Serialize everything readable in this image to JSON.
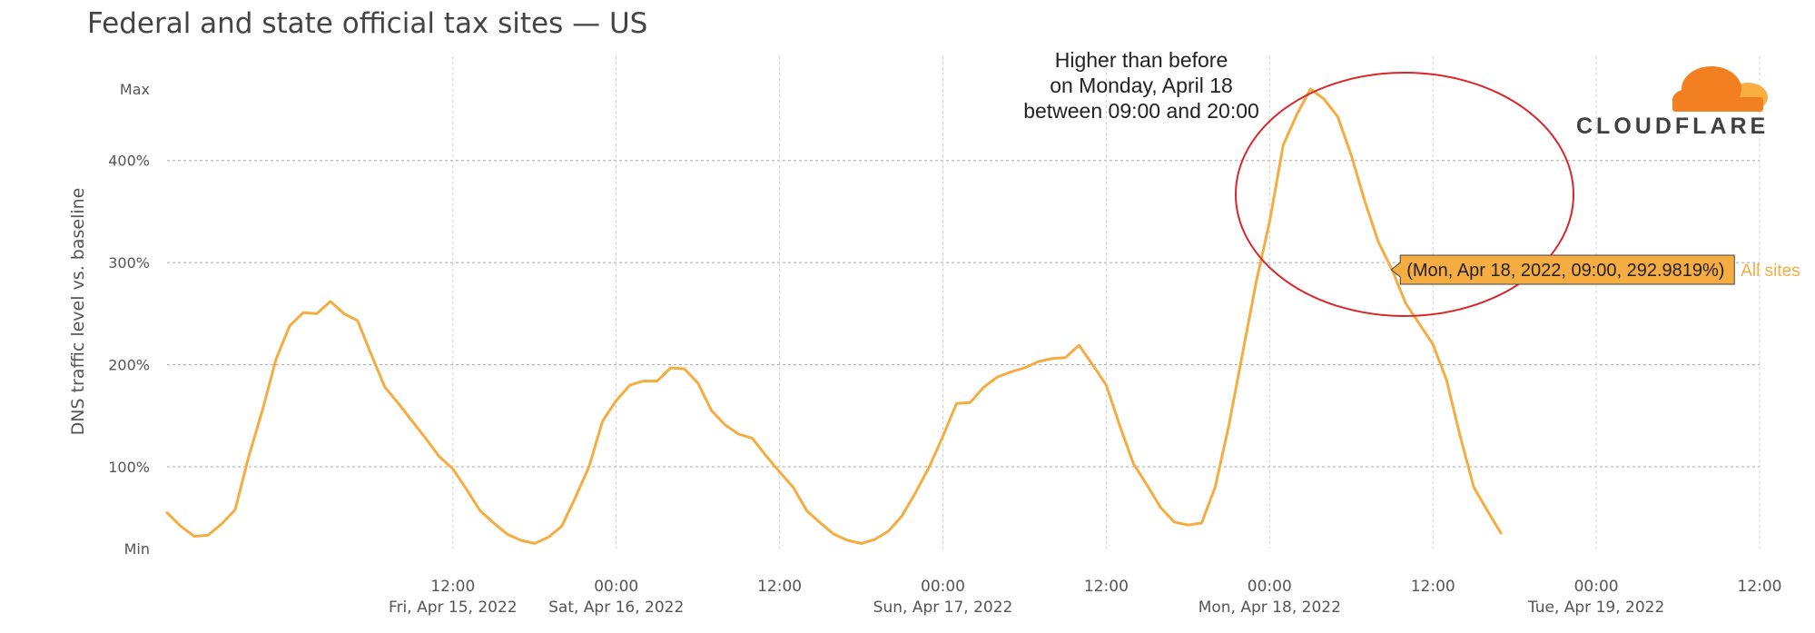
{
  "chart_data": {
    "type": "line",
    "title": "Federal and state official tax sites — US",
    "ylabel": "DNS traffic level vs. baseline",
    "xlabel": "",
    "y_ticks": [
      {
        "label": "Max",
        "value": 470
      },
      {
        "label": "400%",
        "value": 400
      },
      {
        "label": "300%",
        "value": 300
      },
      {
        "label": "200%",
        "value": 200
      },
      {
        "label": "100%",
        "value": 100
      },
      {
        "label": "Min",
        "value": 20
      }
    ],
    "ylim": [
      20,
      470
    ],
    "xlim": [
      "2022-04-14 15:00",
      "2022-04-19 12:00"
    ],
    "x_ticks": [
      {
        "time": "2022-04-15 12:00",
        "label": "12:00",
        "sublabel": "Fri, Apr 15, 2022"
      },
      {
        "time": "2022-04-16 00:00",
        "label": "00:00",
        "sublabel": "Sat, Apr 16, 2022"
      },
      {
        "time": "2022-04-16 12:00",
        "label": "12:00",
        "sublabel": ""
      },
      {
        "time": "2022-04-17 00:00",
        "label": "00:00",
        "sublabel": "Sun, Apr 17, 2022"
      },
      {
        "time": "2022-04-17 12:00",
        "label": "12:00",
        "sublabel": ""
      },
      {
        "time": "2022-04-18 00:00",
        "label": "00:00",
        "sublabel": "Mon, Apr 18, 2022"
      },
      {
        "time": "2022-04-18 12:00",
        "label": "12:00",
        "sublabel": ""
      },
      {
        "time": "2022-04-19 00:00",
        "label": "00:00",
        "sublabel": "Tue, Apr 19, 2022"
      },
      {
        "time": "2022-04-19 12:00",
        "label": "12:00",
        "sublabel": ""
      }
    ],
    "grid": true,
    "series": [
      {
        "name": "All sites",
        "color": "#f5ac41",
        "points": [
          [
            "2022-04-14 15:00",
            55
          ],
          [
            "2022-04-14 16:00",
            42
          ],
          [
            "2022-04-14 17:00",
            32
          ],
          [
            "2022-04-14 18:00",
            33
          ],
          [
            "2022-04-14 19:00",
            44
          ],
          [
            "2022-04-14 20:00",
            58
          ],
          [
            "2022-04-14 21:00",
            110
          ],
          [
            "2022-04-14 22:00",
            155
          ],
          [
            "2022-04-14 23:00",
            205
          ],
          [
            "2022-04-15 00:00",
            238
          ],
          [
            "2022-04-15 01:00",
            251
          ],
          [
            "2022-04-15 02:00",
            250
          ],
          [
            "2022-04-15 03:00",
            262
          ],
          [
            "2022-04-15 04:00",
            250
          ],
          [
            "2022-04-15 05:00",
            243
          ],
          [
            "2022-04-15 06:00",
            210
          ],
          [
            "2022-04-15 07:00",
            178
          ],
          [
            "2022-04-15 08:00",
            162
          ],
          [
            "2022-04-15 09:00",
            145
          ],
          [
            "2022-04-15 10:00",
            128
          ],
          [
            "2022-04-15 11:00",
            110
          ],
          [
            "2022-04-15 12:00",
            98
          ],
          [
            "2022-04-15 13:00",
            78
          ],
          [
            "2022-04-15 14:00",
            57
          ],
          [
            "2022-04-15 15:00",
            45
          ],
          [
            "2022-04-15 16:00",
            34
          ],
          [
            "2022-04-15 17:00",
            28
          ],
          [
            "2022-04-15 18:00",
            25
          ],
          [
            "2022-04-15 19:00",
            31
          ],
          [
            "2022-04-15 20:00",
            42
          ],
          [
            "2022-04-15 21:00",
            70
          ],
          [
            "2022-04-15 22:00",
            100
          ],
          [
            "2022-04-15 23:00",
            145
          ],
          [
            "2022-04-16 00:00",
            165
          ],
          [
            "2022-04-16 01:00",
            180
          ],
          [
            "2022-04-16 02:00",
            184
          ],
          [
            "2022-04-16 03:00",
            184
          ],
          [
            "2022-04-16 04:00",
            197
          ],
          [
            "2022-04-16 05:00",
            196
          ],
          [
            "2022-04-16 06:00",
            182
          ],
          [
            "2022-04-16 07:00",
            155
          ],
          [
            "2022-04-16 08:00",
            141
          ],
          [
            "2022-04-16 09:00",
            132
          ],
          [
            "2022-04-16 10:00",
            128
          ],
          [
            "2022-04-16 11:00",
            111
          ],
          [
            "2022-04-16 12:00",
            95
          ],
          [
            "2022-04-16 13:00",
            80
          ],
          [
            "2022-04-16 14:00",
            57
          ],
          [
            "2022-04-16 15:00",
            45
          ],
          [
            "2022-04-16 16:00",
            34
          ],
          [
            "2022-04-16 17:00",
            28
          ],
          [
            "2022-04-16 18:00",
            25
          ],
          [
            "2022-04-16 19:00",
            29
          ],
          [
            "2022-04-16 20:00",
            37
          ],
          [
            "2022-04-16 21:00",
            52
          ],
          [
            "2022-04-16 22:00",
            75
          ],
          [
            "2022-04-16 23:00",
            100
          ],
          [
            "2022-04-17 00:00",
            130
          ],
          [
            "2022-04-17 01:00",
            162
          ],
          [
            "2022-04-17 02:00",
            163
          ],
          [
            "2022-04-17 03:00",
            178
          ],
          [
            "2022-04-17 04:00",
            188
          ],
          [
            "2022-04-17 05:00",
            193
          ],
          [
            "2022-04-17 06:00",
            197
          ],
          [
            "2022-04-17 07:00",
            203
          ],
          [
            "2022-04-17 08:00",
            206
          ],
          [
            "2022-04-17 09:00",
            207
          ],
          [
            "2022-04-17 10:00",
            219
          ],
          [
            "2022-04-17 11:00",
            200
          ],
          [
            "2022-04-17 12:00",
            180
          ],
          [
            "2022-04-17 13:00",
            140
          ],
          [
            "2022-04-17 14:00",
            103
          ],
          [
            "2022-04-17 15:00",
            82
          ],
          [
            "2022-04-17 16:00",
            60
          ],
          [
            "2022-04-17 17:00",
            46
          ],
          [
            "2022-04-17 18:00",
            43
          ],
          [
            "2022-04-17 19:00",
            45
          ],
          [
            "2022-04-17 20:00",
            80
          ],
          [
            "2022-04-17 21:00",
            140
          ],
          [
            "2022-04-17 22:00",
            210
          ],
          [
            "2022-04-17 23:00",
            280
          ],
          [
            "2022-04-18 00:00",
            340
          ],
          [
            "2022-04-18 01:00",
            415
          ],
          [
            "2022-04-18 02:00",
            445
          ],
          [
            "2022-04-18 03:00",
            470
          ],
          [
            "2022-04-18 04:00",
            460
          ],
          [
            "2022-04-18 05:00",
            443
          ],
          [
            "2022-04-18 06:00",
            405
          ],
          [
            "2022-04-18 07:00",
            360
          ],
          [
            "2022-04-18 08:00",
            320
          ],
          [
            "2022-04-18 09:00",
            293
          ],
          [
            "2022-04-18 10:00",
            260
          ],
          [
            "2022-04-18 11:00",
            240
          ],
          [
            "2022-04-18 12:00",
            220
          ],
          [
            "2022-04-18 13:00",
            185
          ],
          [
            "2022-04-18 14:00",
            130
          ],
          [
            "2022-04-18 15:00",
            80
          ],
          [
            "2022-04-18 16:00",
            57
          ],
          [
            "2022-04-18 17:00",
            35
          ]
        ]
      }
    ],
    "annotation": {
      "lines": [
        "Higher than before",
        "on Monday, April 18",
        "between 09:00 and 20:00"
      ],
      "circle_color": "#d9252a"
    },
    "tooltip": {
      "text": "(Mon, Apr 18, 2022, 09:00, 292.9819%)",
      "x": "2022-04-18 09:00",
      "y": 292.9819,
      "series_label": "All sites"
    }
  },
  "logo": {
    "text": "CLOUDFLARE",
    "cloud_colors": [
      "#f38020",
      "#faae40"
    ]
  }
}
